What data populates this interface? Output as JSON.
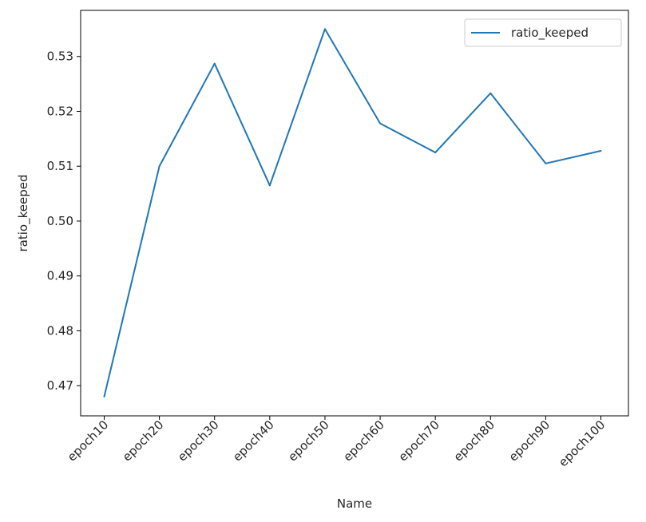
{
  "chart_data": {
    "type": "line",
    "categories": [
      "epoch10",
      "epoch20",
      "epoch30",
      "epoch40",
      "epoch50",
      "epoch60",
      "epoch70",
      "epoch80",
      "epoch90",
      "epoch100"
    ],
    "series": [
      {
        "name": "ratio_keeped",
        "values": [
          0.468,
          0.51,
          0.5287,
          0.5065,
          0.535,
          0.5178,
          0.5125,
          0.5233,
          0.5105,
          0.5128
        ],
        "color": "#1f77b4"
      }
    ],
    "title": "",
    "xlabel": "Name",
    "ylabel": "ratio_keeped",
    "ylim": [
      0.4645,
      0.5384
    ],
    "yticks": [
      0.47,
      0.48,
      0.49,
      0.5,
      0.51,
      0.52,
      0.53
    ],
    "ytick_labels": [
      "0.47",
      "0.48",
      "0.49",
      "0.50",
      "0.51",
      "0.52",
      "0.53"
    ],
    "grid": false,
    "legend": "upper-right",
    "xtick_rotation_deg": 45
  }
}
